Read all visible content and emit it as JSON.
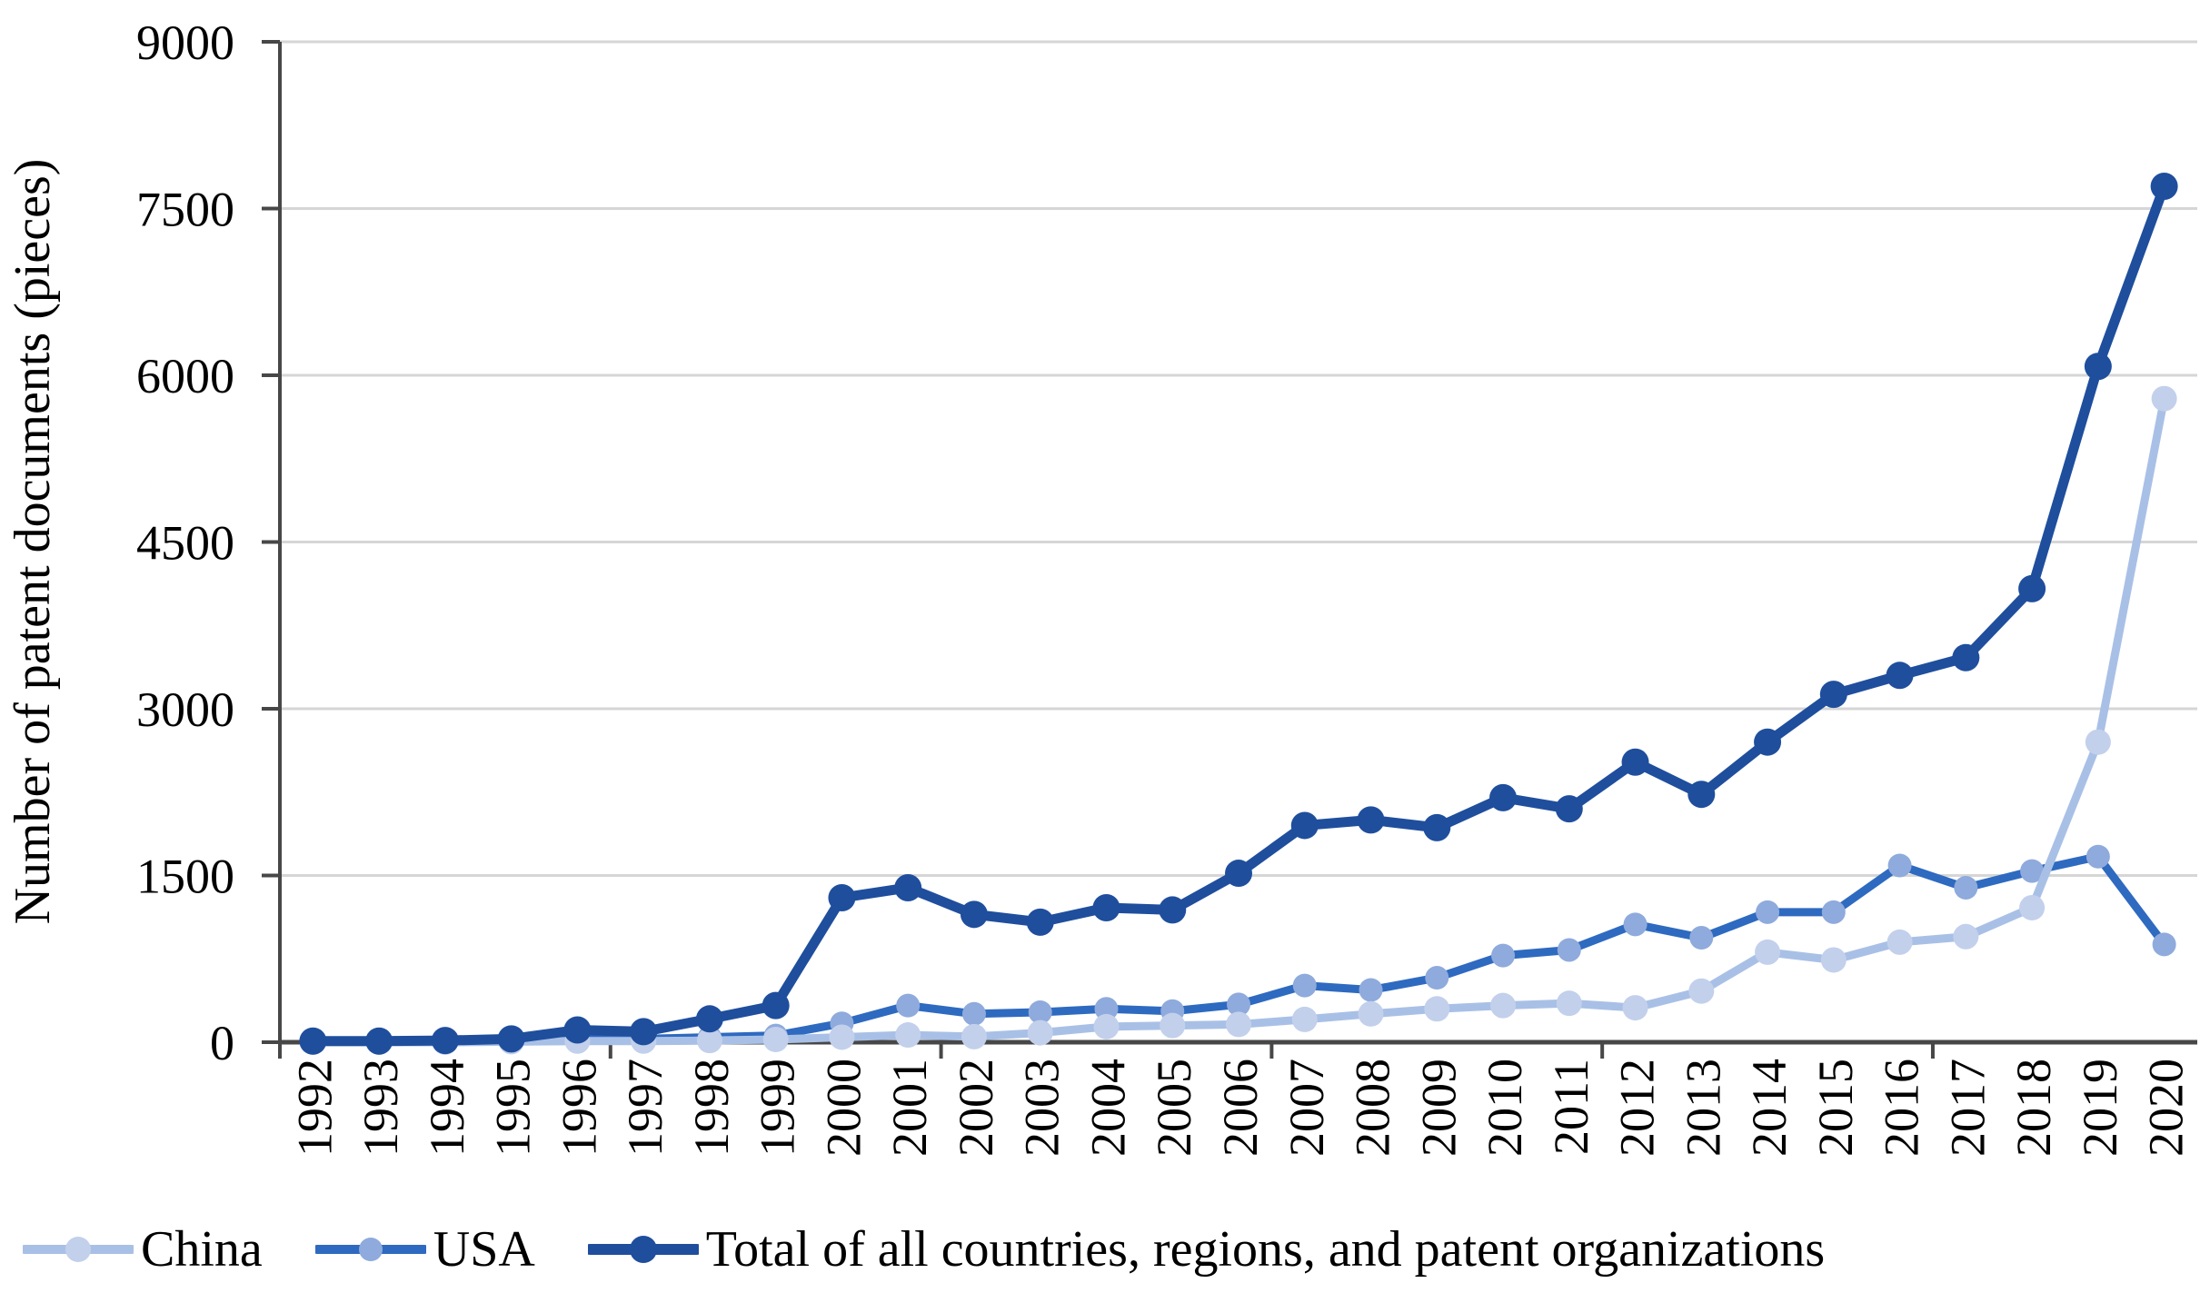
{
  "chart_data": {
    "type": "line",
    "title": "",
    "xlabel": "",
    "ylabel": "Number of patent documents (pieces)",
    "ylim": [
      0,
      9000
    ],
    "y_ticks": [
      0,
      1500,
      3000,
      4500,
      6000,
      7500,
      9000
    ],
    "grid": "horizontal",
    "legend_position": "bottom-left",
    "categories": [
      "1992",
      "1993",
      "1994",
      "1995",
      "1996",
      "1997",
      "1998",
      "1999",
      "2000",
      "2001",
      "2002",
      "2003",
      "2004",
      "2005",
      "2006",
      "2007",
      "2008",
      "2009",
      "2010",
      "2011",
      "2012",
      "2013",
      "2014",
      "2015",
      "2016",
      "2017",
      "2018",
      "2019",
      "2020"
    ],
    "series": [
      {
        "name": "China",
        "slug": "china",
        "line_color": "#a9c0e6",
        "marker_color": "#c2d0ec",
        "line_width": 9,
        "marker_radius": 14,
        "values": [
          0,
          0,
          0,
          5,
          10,
          10,
          15,
          25,
          45,
          65,
          50,
          85,
          140,
          150,
          160,
          205,
          255,
          300,
          330,
          350,
          310,
          460,
          810,
          740,
          900,
          950,
          1210,
          2700,
          5790
        ]
      },
      {
        "name": "USA",
        "slug": "usa",
        "line_color": "#2e6ac0",
        "marker_color": "#8faadc",
        "line_width": 9,
        "marker_radius": 13,
        "values": [
          0,
          0,
          5,
          10,
          30,
          30,
          45,
          60,
          170,
          330,
          255,
          270,
          300,
          280,
          340,
          510,
          470,
          580,
          780,
          830,
          1060,
          940,
          1170,
          1170,
          1590,
          1390,
          1540,
          1670,
          880
        ]
      },
      {
        "name": "Total of all countries, regions, and patent organizations",
        "slug": "total",
        "line_color": "#1f4e9d",
        "marker_color": "#1f4e9d",
        "line_width": 11,
        "marker_radius": 15,
        "values": [
          10,
          10,
          15,
          30,
          110,
          95,
          210,
          330,
          1300,
          1390,
          1150,
          1080,
          1210,
          1190,
          1520,
          1950,
          2000,
          1930,
          2200,
          2100,
          2520,
          2230,
          2700,
          3130,
          3300,
          3460,
          4080,
          6080,
          7700
        ]
      }
    ],
    "draw_order": [
      1,
      0,
      2
    ],
    "style": {
      "grid_color": "#d6d6d6",
      "axis_color": "#474747",
      "background": "#ffffff"
    }
  }
}
